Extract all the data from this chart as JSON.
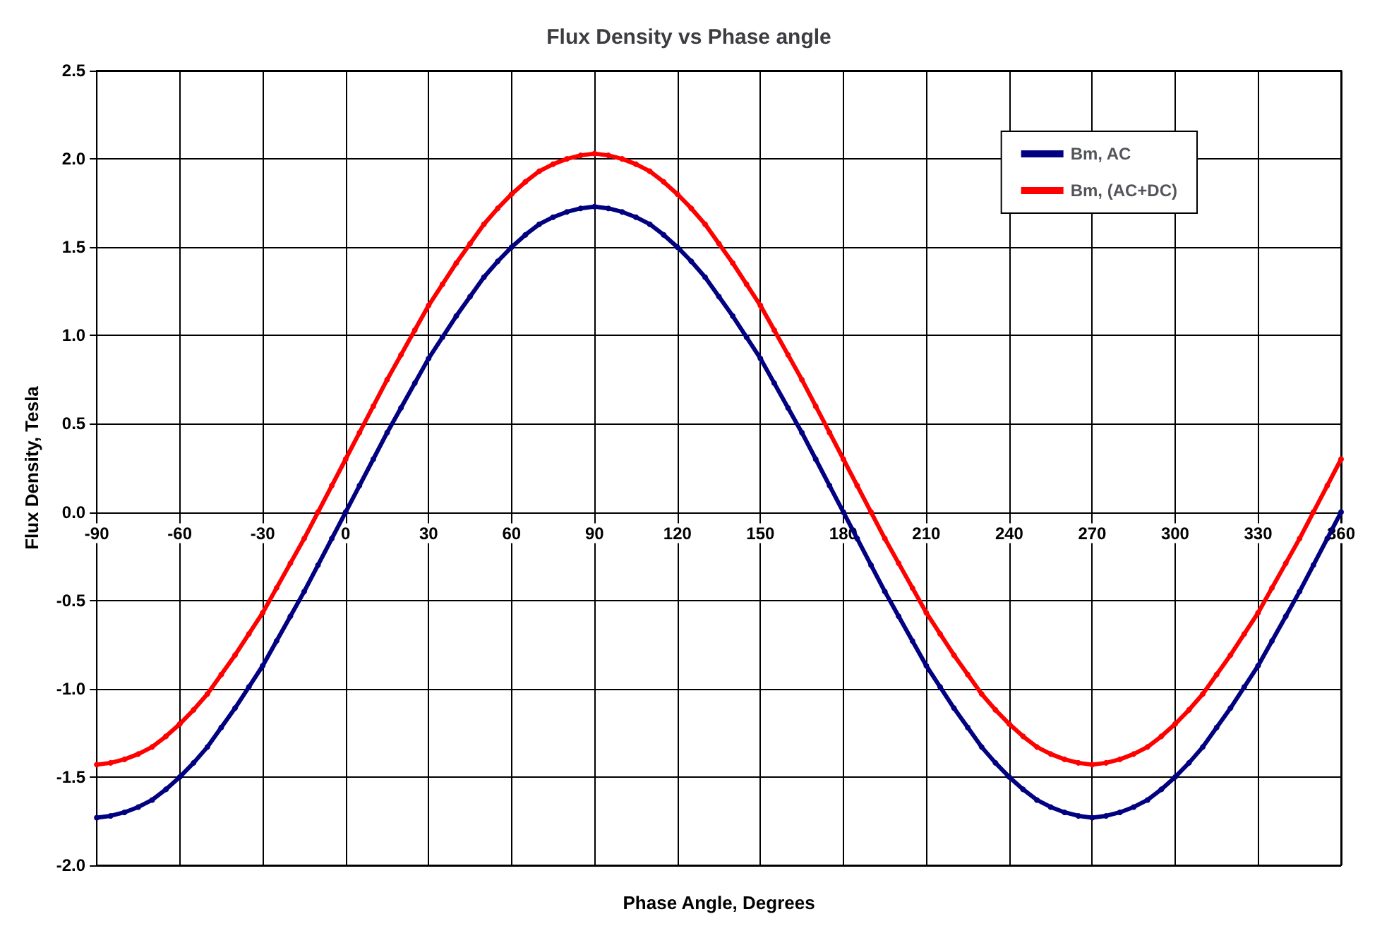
{
  "chart_data": {
    "type": "line",
    "title": "Flux Density vs Phase angle",
    "xlabel": "Phase Angle, Degrees",
    "ylabel": "Flux Density, Tesla",
    "x": [
      -90,
      -85,
      -80,
      -75,
      -70,
      -65,
      -60,
      -55,
      -50,
      -45,
      -40,
      -35,
      -30,
      -25,
      -20,
      -15,
      -10,
      -5,
      0,
      5,
      10,
      15,
      20,
      25,
      30,
      35,
      40,
      45,
      50,
      55,
      60,
      65,
      70,
      75,
      80,
      85,
      90,
      95,
      100,
      105,
      110,
      115,
      120,
      125,
      130,
      135,
      140,
      145,
      150,
      155,
      160,
      165,
      170,
      175,
      180,
      185,
      190,
      195,
      200,
      205,
      210,
      215,
      220,
      225,
      230,
      235,
      240,
      245,
      250,
      255,
      260,
      265,
      270,
      275,
      280,
      285,
      290,
      295,
      300,
      305,
      310,
      315,
      320,
      325,
      330,
      335,
      340,
      345,
      350,
      355,
      360
    ],
    "series": [
      {
        "name": "Bm, AC",
        "color": "#000080",
        "values": [
          -1.73,
          -1.72,
          -1.7,
          -1.67,
          -1.63,
          -1.57,
          -1.5,
          -1.42,
          -1.33,
          -1.22,
          -1.11,
          -0.99,
          -0.87,
          -0.73,
          -0.59,
          -0.45,
          -0.3,
          -0.15,
          0,
          0.15,
          0.3,
          0.45,
          0.59,
          0.73,
          0.87,
          0.99,
          1.11,
          1.22,
          1.33,
          1.42,
          1.5,
          1.57,
          1.63,
          1.67,
          1.7,
          1.72,
          1.73,
          1.72,
          1.7,
          1.67,
          1.63,
          1.57,
          1.5,
          1.42,
          1.33,
          1.22,
          1.11,
          0.99,
          0.87,
          0.73,
          0.59,
          0.45,
          0.3,
          0.15,
          0,
          -0.15,
          -0.3,
          -0.45,
          -0.59,
          -0.73,
          -0.87,
          -0.99,
          -1.11,
          -1.22,
          -1.33,
          -1.42,
          -1.5,
          -1.57,
          -1.63,
          -1.67,
          -1.7,
          -1.72,
          -1.73,
          -1.72,
          -1.7,
          -1.67,
          -1.63,
          -1.57,
          -1.5,
          -1.42,
          -1.33,
          -1.22,
          -1.11,
          -0.99,
          -0.87,
          -0.73,
          -0.59,
          -0.45,
          -0.3,
          -0.15,
          0
        ]
      },
      {
        "name": "Bm, (AC+DC)",
        "color": "#ff0000",
        "values": [
          -1.43,
          -1.42,
          -1.4,
          -1.37,
          -1.33,
          -1.27,
          -1.2,
          -1.12,
          -1.03,
          -0.92,
          -0.81,
          -0.69,
          -0.57,
          -0.43,
          -0.29,
          -0.15,
          0.0,
          0.15,
          0.3,
          0.45,
          0.6,
          0.75,
          0.89,
          1.03,
          1.17,
          1.29,
          1.41,
          1.52,
          1.63,
          1.72,
          1.8,
          1.87,
          1.93,
          1.97,
          2.0,
          2.02,
          2.03,
          2.02,
          2.0,
          1.97,
          1.93,
          1.87,
          1.8,
          1.72,
          1.63,
          1.52,
          1.41,
          1.29,
          1.17,
          1.03,
          0.89,
          0.75,
          0.6,
          0.45,
          0.3,
          0.15,
          0.0,
          -0.15,
          -0.29,
          -0.43,
          -0.57,
          -0.69,
          -0.81,
          -0.92,
          -1.03,
          -1.12,
          -1.2,
          -1.27,
          -1.33,
          -1.37,
          -1.4,
          -1.42,
          -1.43,
          -1.42,
          -1.4,
          -1.37,
          -1.33,
          -1.27,
          -1.2,
          -1.12,
          -1.03,
          -0.92,
          -0.81,
          -0.69,
          -0.57,
          -0.43,
          -0.29,
          -0.15,
          0.0,
          0.15,
          0.3
        ]
      }
    ],
    "xlim": [
      -90,
      360
    ],
    "xticks": [
      -90,
      -60,
      -30,
      0,
      30,
      60,
      90,
      120,
      150,
      180,
      210,
      240,
      270,
      300,
      330,
      360
    ],
    "ylim": [
      -2.0,
      2.5
    ],
    "yticks": [
      {
        "value": -2,
        "label": "-2.0"
      },
      {
        "value": -1.5,
        "label": "-1.5"
      },
      {
        "value": -1,
        "label": "-1.0"
      },
      {
        "value": -0.5,
        "label": "-0.5"
      },
      {
        "value": 0,
        "label": "0.0"
      },
      {
        "value": 0.5,
        "label": "0.5"
      },
      {
        "value": 1,
        "label": "1.0"
      },
      {
        "value": 1.5,
        "label": "1.5"
      },
      {
        "value": 2,
        "label": "2.0"
      },
      {
        "value": 2.5,
        "label": "2.5"
      }
    ],
    "grid": true,
    "legend": "top right",
    "marker": "circle",
    "line_style": "solid"
  }
}
